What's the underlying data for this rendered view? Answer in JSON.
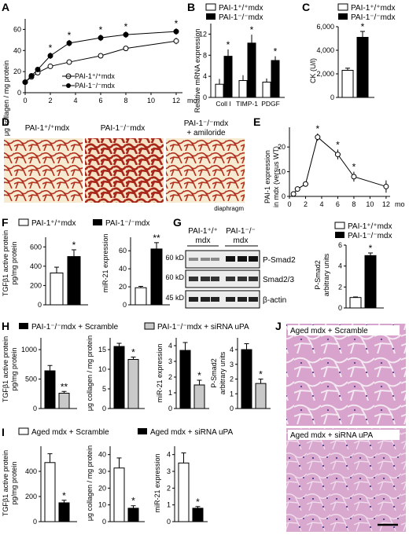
{
  "panel_letters": [
    "A",
    "B",
    "C",
    "D",
    "E",
    "F",
    "G",
    "H",
    "I",
    "J"
  ],
  "panelA": {
    "ylabel": "μg collagen / mg protein",
    "yticks": [
      "0",
      "20",
      "40",
      "60"
    ],
    "xticks": [
      "0",
      "2",
      "4",
      "6",
      "8",
      "10",
      "12"
    ],
    "x_unit": "mo",
    "legend": [
      "PAI-1⁺/⁺mdx",
      "PAI-1⁻/⁻mdx"
    ],
    "stars": [
      "*",
      "*",
      "*",
      "*",
      "*"
    ]
  },
  "panelB": {
    "ylabel": "Relative mRNA expression",
    "yticks": [
      "0",
      "4",
      "8",
      "12"
    ],
    "categories": [
      "Coll I",
      "TIMP-1",
      "PDGF"
    ],
    "legend": [
      "PAI-1⁺/⁺mdx",
      "PAI-1⁻/⁻mdx"
    ],
    "stars": [
      "*",
      "*",
      "*"
    ]
  },
  "panelC": {
    "ylabel": "CK (U/l)",
    "yticks": [
      "0",
      "2,000",
      "4,000",
      "6,000"
    ],
    "legend": [
      "PAI-1⁺/⁺mdx",
      "PAI-1⁻/⁻mdx"
    ],
    "stars": [
      "*"
    ]
  },
  "panelD": {
    "labels": [
      "PAI-1⁺/⁺mdx",
      "PAI-1⁻/⁻mdx",
      "PAI-1⁻/⁻mdx",
      "+ amiloride"
    ],
    "caption": "diaphragm"
  },
  "panelE": {
    "ylabel_line1": "PAI-1 expression",
    "ylabel_line2": "in mdx (versus WT)",
    "yticks": [
      "0",
      "10",
      "20"
    ],
    "xticks": [
      "0",
      "2",
      "4",
      "6",
      "8",
      "10",
      "12"
    ],
    "x_unit": "mo",
    "stars": [
      "*",
      "*",
      "*"
    ]
  },
  "panelF": {
    "legend": [
      "PAI-1⁺/⁺mdx",
      "PAI-1⁻/⁻mdx"
    ],
    "ylabel1_line1": "TGFβ1 active protein",
    "ylabel1_line2": "pg/mg protein",
    "yticks1": [
      "0",
      "200",
      "400",
      "600"
    ],
    "ylabel2": "miR-21 expression",
    "yticks2": [
      "0",
      "20",
      "40",
      "60"
    ],
    "stars": [
      "*",
      "**"
    ]
  },
  "panelG": {
    "col_headers": [
      "PAI-1⁺/⁺",
      "mdx",
      "PAI-1⁻/⁻",
      "mdx"
    ],
    "mw": [
      "60 kD",
      "60 kD",
      "45 kD"
    ],
    "bands": [
      "P-Smad2",
      "Smad2/3",
      "β-actin"
    ],
    "legend": [
      "PAI-1⁺/⁺mdx",
      "PAI-1⁻/⁻mdx"
    ],
    "ylabel_line1": "P-Smad2",
    "ylabel_line2": "arbitrary units",
    "yticks": [
      "0",
      "2",
      "4",
      "6"
    ],
    "stars": [
      "*"
    ]
  },
  "panelH": {
    "legend": [
      "PAI-1⁻/⁻mdx + Scramble",
      "PAI-1⁻/⁻mdx + siRNA uPA"
    ],
    "ylabel1_line1": "TGFβ1 active protein",
    "ylabel1_line2": "pg/mg protein",
    "yticks1": [
      "0",
      "500",
      "1000"
    ],
    "ylabel2": "μg collagen / mg protein",
    "yticks2": [
      "0",
      "5",
      "10",
      "15"
    ],
    "ylabel3": "miR-21 expression",
    "yticks3": [
      "0",
      "1",
      "2",
      "3",
      "4"
    ],
    "ylabel4_line1": "P-Smad2",
    "ylabel4_line2": "arbitrary units",
    "yticks4": [
      "0",
      "1",
      "2",
      "3",
      "4"
    ],
    "stars": [
      "**",
      "*",
      "*",
      "*"
    ]
  },
  "panelI": {
    "legend": [
      "Aged mdx + Scramble",
      "Aged mdx + siRNA uPA"
    ],
    "ylabel1_line1": "TGFβ1 active protein",
    "ylabel1_line2": "pg/mg protein",
    "yticks1": [
      "0",
      "200",
      "400"
    ],
    "ylabel2": "μg collagen / mg protein",
    "yticks2": [
      "0",
      "10",
      "20",
      "30",
      "40"
    ],
    "ylabel3": "miR-21 expression",
    "yticks3": [
      "0",
      "1",
      "2",
      "3",
      "4"
    ],
    "stars": [
      "*",
      "*",
      "*"
    ]
  },
  "panelJ": {
    "label1": "Aged mdx + Scramble",
    "label2": "Aged mdx + siRNA uPA"
  },
  "colors": {
    "ink": "#000000",
    "sirius_red": "#c0392b",
    "he_pink": "#d98cb8",
    "light_bar": "#c9c9c9"
  },
  "chart_data": [
    {
      "panel": "A",
      "type": "line",
      "x": [
        0,
        0.5,
        1,
        2,
        3.5,
        6,
        8,
        12
      ],
      "series": [
        {
          "name": "PAI-1⁺/⁺mdx",
          "values": [
            10,
            15,
            19,
            25,
            29,
            35,
            42,
            49
          ]
        },
        {
          "name": "PAI-1⁻/⁻mdx",
          "values": [
            10,
            16,
            22,
            35,
            47,
            52,
            55,
            58
          ]
        }
      ],
      "xlabel": "mo",
      "ylabel": "μg collagen / mg protein",
      "ylim": [
        0,
        70
      ],
      "xlim": [
        0,
        12.5
      ]
    },
    {
      "panel": "B",
      "type": "bar",
      "categories": [
        "Coll I",
        "TIMP-1",
        "PDGF"
      ],
      "series": [
        {
          "name": "PAI-1⁺/⁺mdx",
          "values": [
            2.5,
            3.2,
            2.9
          ]
        },
        {
          "name": "PAI-1⁻/⁻mdx",
          "values": [
            7.8,
            10.3,
            7.0
          ]
        }
      ],
      "ylabel": "Relative mRNA expression",
      "ylim": [
        0,
        14
      ]
    },
    {
      "panel": "C",
      "type": "bar",
      "categories": [
        ""
      ],
      "series": [
        {
          "name": "PAI-1⁺/⁺mdx",
          "values": [
            2300
          ]
        },
        {
          "name": "PAI-1⁻/⁻mdx",
          "values": [
            5100
          ]
        }
      ],
      "ylabel": "CK (U/l)",
      "ylim": [
        0,
        6000
      ]
    },
    {
      "panel": "E",
      "type": "line",
      "x": [
        0.5,
        1,
        2,
        3.5,
        6,
        8,
        12
      ],
      "series": [
        {
          "values": [
            1,
            3,
            5,
            24,
            17,
            8,
            4
          ]
        }
      ],
      "xlabel": "mo",
      "ylabel": "PAI-1 expression in mdx (versus WT)",
      "ylim": [
        0,
        28
      ],
      "xlim": [
        0,
        12.5
      ]
    },
    {
      "panel": "F",
      "type": "bar",
      "categories": [
        ""
      ],
      "series": [
        {
          "name": "PAI-1⁺/⁺mdx",
          "values": [
            330
          ]
        },
        {
          "name": "PAI-1⁻/⁻mdx",
          "values": [
            500
          ]
        }
      ],
      "ylabel": "TGFβ1 active protein pg/mg protein",
      "ylim": [
        0,
        700
      ]
    },
    {
      "panel": "F",
      "type": "bar",
      "categories": [
        ""
      ],
      "series": [
        {
          "name": "PAI-1⁺/⁺mdx",
          "values": [
            19
          ]
        },
        {
          "name": "PAI-1⁻/⁻mdx",
          "values": [
            62
          ]
        }
      ],
      "ylabel": "miR-21 expression",
      "ylim": [
        0,
        75
      ]
    },
    {
      "panel": "G",
      "type": "bar",
      "categories": [
        ""
      ],
      "series": [
        {
          "name": "PAI-1⁺/⁺mdx",
          "values": [
            1.0
          ]
        },
        {
          "name": "PAI-1⁻/⁻mdx",
          "values": [
            5.0
          ]
        }
      ],
      "ylabel": "P-Smad2 arbitrary units",
      "ylim": [
        0,
        6
      ]
    },
    {
      "panel": "H",
      "type": "bar",
      "categories": [
        ""
      ],
      "series": [
        {
          "name": "PAI-1⁻/⁻mdx + Scramble",
          "values": [
            640
          ]
        },
        {
          "name": "PAI-1⁻/⁻mdx + siRNA uPA",
          "values": [
            260
          ]
        }
      ],
      "ylabel": "TGFβ1 active protein pg/mg protein",
      "ylim": [
        0,
        1200
      ]
    },
    {
      "panel": "H",
      "type": "bar",
      "categories": [
        ""
      ],
      "series": [
        {
          "name": "PAI-1⁻/⁻mdx + Scramble",
          "values": [
            15.8
          ]
        },
        {
          "name": "PAI-1⁻/⁻mdx + siRNA uPA",
          "values": [
            12.5
          ]
        }
      ],
      "ylabel": "μg collagen / mg protein",
      "ylim": [
        0,
        18
      ]
    },
    {
      "panel": "H",
      "type": "bar",
      "categories": [
        ""
      ],
      "series": [
        {
          "name": "PAI-1⁻/⁻mdx + Scramble",
          "values": [
            3.7
          ]
        },
        {
          "name": "PAI-1⁻/⁻mdx + siRNA uPA",
          "values": [
            1.5
          ]
        }
      ],
      "ylabel": "miR-21 expression",
      "ylim": [
        0,
        4.5
      ]
    },
    {
      "panel": "H",
      "type": "bar",
      "categories": [
        ""
      ],
      "series": [
        {
          "name": "PAI-1⁻/⁻mdx + Scramble",
          "values": [
            4.0
          ]
        },
        {
          "name": "PAI-1⁻/⁻mdx + siRNA uPA",
          "values": [
            1.7
          ]
        }
      ],
      "ylabel": "P-Smad2 arbitrary units",
      "ylim": [
        0,
        4.8
      ]
    },
    {
      "panel": "I",
      "type": "bar",
      "categories": [
        ""
      ],
      "series": [
        {
          "name": "Aged mdx + Scramble",
          "values": [
            470
          ]
        },
        {
          "name": "Aged mdx + siRNA uPA",
          "values": [
            150
          ]
        }
      ],
      "ylabel": "TGFβ1 active protein pg/mg protein",
      "ylim": [
        0,
        600
      ]
    },
    {
      "panel": "I",
      "type": "bar",
      "categories": [
        ""
      ],
      "series": [
        {
          "name": "Aged mdx + Scramble",
          "values": [
            32
          ]
        },
        {
          "name": "Aged mdx + siRNA uPA",
          "values": [
            8
          ]
        }
      ],
      "ylabel": "μg collagen / mg protein",
      "ylim": [
        0,
        45
      ]
    },
    {
      "panel": "I",
      "type": "bar",
      "categories": [
        ""
      ],
      "series": [
        {
          "name": "Aged mdx + Scramble",
          "values": [
            3.5
          ]
        },
        {
          "name": "Aged mdx + siRNA uPA",
          "values": [
            0.8
          ]
        }
      ],
      "ylabel": "miR-21 expression",
      "ylim": [
        0,
        4.5
      ]
    }
  ]
}
